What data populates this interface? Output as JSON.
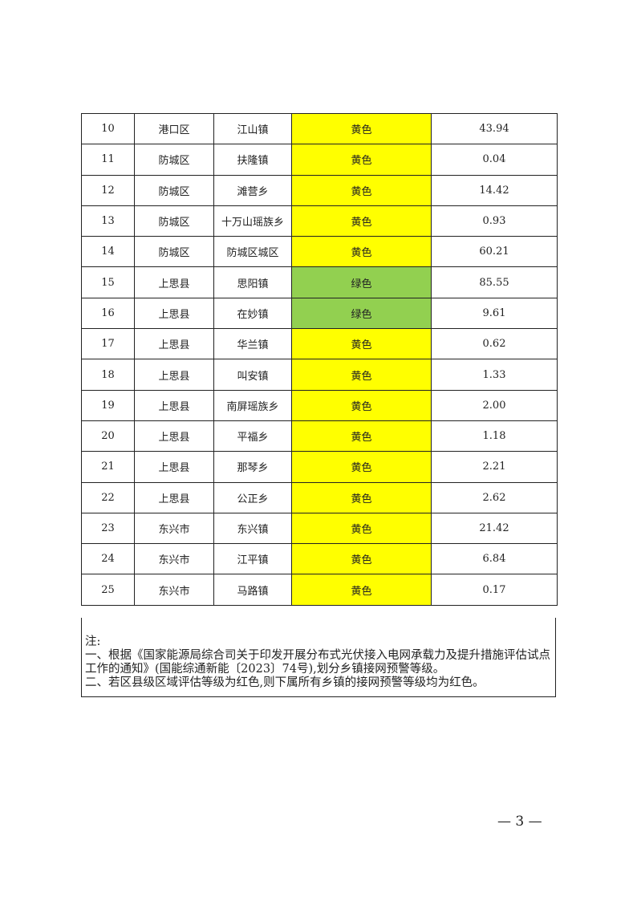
{
  "table": {
    "rows": [
      {
        "no": "10",
        "district": "港口区",
        "town": "江山镇",
        "level": "黄色",
        "fill": "#ffff00",
        "value": "43.94"
      },
      {
        "no": "11",
        "district": "防城区",
        "town": "扶隆镇",
        "level": "黄色",
        "fill": "#ffff00",
        "value": "0.04"
      },
      {
        "no": "12",
        "district": "防城区",
        "town": "滩营乡",
        "level": "黄色",
        "fill": "#ffff00",
        "value": "14.42"
      },
      {
        "no": "13",
        "district": "防城区",
        "town": "十万山瑶族乡",
        "level": "黄色",
        "fill": "#ffff00",
        "value": "0.93"
      },
      {
        "no": "14",
        "district": "防城区",
        "town": "防城区城区",
        "level": "黄色",
        "fill": "#ffff00",
        "value": "60.21"
      },
      {
        "no": "15",
        "district": "上思县",
        "town": "思阳镇",
        "level": "绿色",
        "fill": "#92d050",
        "value": "85.55"
      },
      {
        "no": "16",
        "district": "上思县",
        "town": "在妙镇",
        "level": "绿色",
        "fill": "#92d050",
        "value": "9.61"
      },
      {
        "no": "17",
        "district": "上思县",
        "town": "华兰镇",
        "level": "黄色",
        "fill": "#ffff00",
        "value": "0.62"
      },
      {
        "no": "18",
        "district": "上思县",
        "town": "叫安镇",
        "level": "黄色",
        "fill": "#ffff00",
        "value": "1.33"
      },
      {
        "no": "19",
        "district": "上思县",
        "town": "南屏瑶族乡",
        "level": "黄色",
        "fill": "#ffff00",
        "value": "2.00"
      },
      {
        "no": "20",
        "district": "上思县",
        "town": "平福乡",
        "level": "黄色",
        "fill": "#ffff00",
        "value": "1.18"
      },
      {
        "no": "21",
        "district": "上思县",
        "town": "那琴乡",
        "level": "黄色",
        "fill": "#ffff00",
        "value": "2.21"
      },
      {
        "no": "22",
        "district": "上思县",
        "town": "公正乡",
        "level": "黄色",
        "fill": "#ffff00",
        "value": "2.62"
      },
      {
        "no": "23",
        "district": "东兴市",
        "town": "东兴镇",
        "level": "黄色",
        "fill": "#ffff00",
        "value": "21.42"
      },
      {
        "no": "24",
        "district": "东兴市",
        "town": "江平镇",
        "level": "黄色",
        "fill": "#ffff00",
        "value": "6.84"
      },
      {
        "no": "25",
        "district": "东兴市",
        "town": "马路镇",
        "level": "黄色",
        "fill": "#ffff00",
        "value": "0.17"
      }
    ]
  },
  "note": {
    "title": "注:",
    "items": [
      "一、根据《国家能源局综合司关于印发开展分布式光伏接入电网承载力及提升措施评估试点工作的通知》(国能综通新能〔2023〕74号),划分乡镇接网预警等级。",
      "二、若区县级区域评估等级为红色,则下属所有乡镇的接网预警等级均为红色。"
    ]
  },
  "footer": {
    "page": "— 3 —"
  }
}
